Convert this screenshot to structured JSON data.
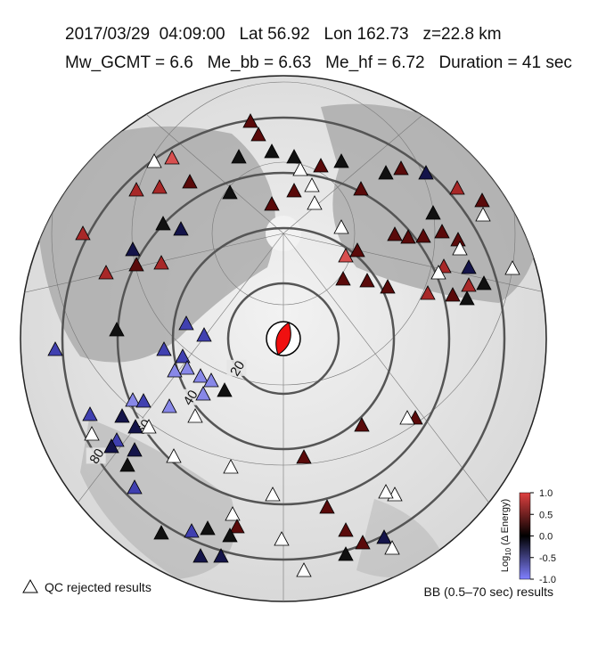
{
  "header": {
    "line1": "2017/03/29  04:09:00   Lat 56.92   Lon 162.73   z=22.8 km",
    "line2": "Mw_GCMT = 6.6   Me_bb = 6.63   Me_hf = 6.72   Duration = 41 sec"
  },
  "distance_rings": [
    20,
    40,
    60,
    80
  ],
  "colorbar": {
    "label_main": "Log",
    "label_sub": "10",
    "label_rest": " (Δ Energy)",
    "ticks": [
      {
        "value": 1,
        "label": "1.0"
      },
      {
        "value": 0.5,
        "label": "0.5"
      },
      {
        "value": 0,
        "label": "0.0"
      },
      {
        "value": -0.5,
        "label": "-0.5"
      },
      {
        "value": -1,
        "label": "-1.0"
      }
    ]
  },
  "legend": {
    "rejected": "QC rejected results",
    "band": "BB (0.5–70 sec) results"
  }
}
